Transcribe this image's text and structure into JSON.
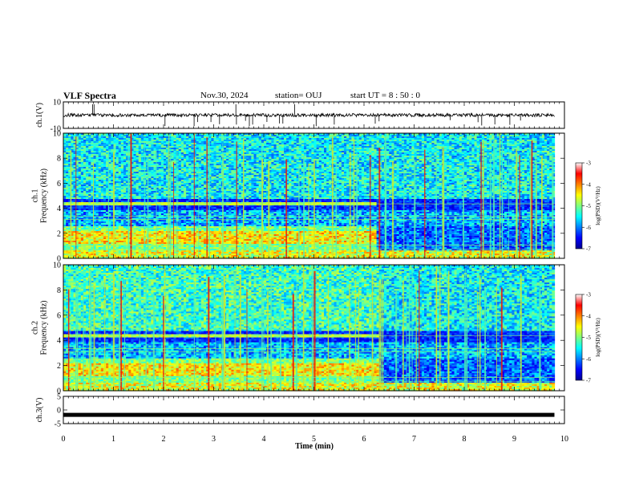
{
  "header": {
    "title": "VLF Spectra",
    "date": "Nov.30, 2024",
    "station": "station= OUJ",
    "start_time": "start  UT =  8 : 50 : 0"
  },
  "chart_data": [
    {
      "type": "line",
      "panel": "ch1-waveform",
      "ylabel": "ch.1(V)",
      "ylim": [
        -10,
        10
      ],
      "y_ticks": [
        "10",
        "-10"
      ],
      "xlim": [
        0,
        10
      ],
      "baseline_value": 0,
      "data_end": 9.8
    },
    {
      "type": "heatmap",
      "panel": "ch1-spectrogram",
      "ylabel": "ch.1\nFrequency  (kHz)",
      "ylim": [
        0,
        10
      ],
      "y_ticks": [
        "0",
        "2",
        "4",
        "6",
        "8",
        "10"
      ],
      "xlim": [
        0,
        10
      ],
      "data_end": 9.8,
      "regime_change_min": 6.25,
      "colorbar": {
        "label": "log(PSD)(V²/Hz)",
        "range": [
          -7,
          -3
        ],
        "ticks": [
          "-3",
          "-4",
          "-5",
          "-6",
          "-7"
        ]
      }
    },
    {
      "type": "heatmap",
      "panel": "ch2-spectrogram",
      "ylabel": "ch.2\nFrequency  (kHz)",
      "ylim": [
        0,
        10
      ],
      "y_ticks": [
        "0",
        "2",
        "4",
        "6",
        "8",
        "10"
      ],
      "xlim": [
        0,
        10
      ],
      "data_end": 9.8,
      "regime_change_min": 6.3,
      "colorbar": {
        "label": "log(PSD)(V²/Hz)",
        "range": [
          -7,
          -3
        ],
        "ticks": [
          "-3",
          "-4",
          "-5",
          "-6",
          "-7"
        ]
      }
    },
    {
      "type": "line",
      "panel": "ch3-waveform",
      "ylabel": "ch.3(V)",
      "ylim": [
        -5,
        5
      ],
      "y_ticks": [
        "5",
        "0",
        "-5"
      ],
      "xlim": [
        0,
        10
      ],
      "baseline_value": -1.8,
      "data_end": 9.8
    }
  ],
  "x_axis": {
    "label": "Time  (min)",
    "ticks": [
      "0",
      "1",
      "2",
      "3",
      "4",
      "5",
      "6",
      "7",
      "8",
      "9",
      "10"
    ]
  }
}
